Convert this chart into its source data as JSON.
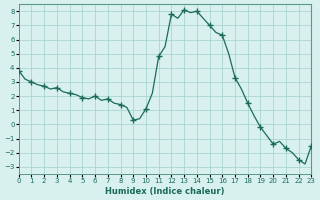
{
  "title": "",
  "xlabel": "Humidex (Indice chaleur)",
  "ylabel": "",
  "background_color": "#d8f0ee",
  "grid_color": "#a0d0cc",
  "line_color": "#1a6b5a",
  "marker_color": "#1a6b5a",
  "xlim": [
    0,
    23
  ],
  "ylim": [
    -3.5,
    8.5
  ],
  "yticks": [
    -3,
    -2,
    -1,
    0,
    1,
    2,
    3,
    4,
    5,
    6,
    7,
    8
  ],
  "xticks": [
    0,
    1,
    2,
    3,
    4,
    5,
    6,
    7,
    8,
    9,
    10,
    11,
    12,
    13,
    14,
    15,
    16,
    17,
    18,
    19,
    20,
    21,
    22,
    23
  ],
  "x": [
    0,
    0.5,
    1,
    1.5,
    2,
    2.5,
    3,
    3.5,
    4,
    4.5,
    5,
    5.5,
    6,
    6.5,
    7,
    7.5,
    8,
    8.5,
    9,
    9.5,
    10,
    10.5,
    11,
    11.5,
    12,
    12.5,
    13,
    13.5,
    14,
    14.5,
    15,
    15.5,
    16,
    16.5,
    17,
    17.5,
    18,
    18.5,
    19,
    19.5,
    20,
    20.5,
    21,
    21.5,
    22,
    22.5,
    23
  ],
  "y": [
    3.8,
    3.2,
    3.0,
    2.8,
    2.7,
    2.5,
    2.6,
    2.3,
    2.2,
    2.1,
    1.9,
    1.8,
    2.0,
    1.7,
    1.8,
    1.5,
    1.4,
    1.2,
    0.3,
    0.4,
    1.1,
    2.2,
    4.8,
    5.5,
    7.8,
    7.5,
    8.1,
    7.9,
    8.0,
    7.5,
    7.0,
    6.5,
    6.3,
    5.0,
    3.3,
    2.5,
    1.5,
    0.6,
    -0.2,
    -0.8,
    -1.4,
    -1.2,
    -1.7,
    -2.0,
    -2.5,
    -2.8,
    -1.5
  ],
  "marker_x": [
    0,
    1,
    2,
    3,
    4,
    5,
    6,
    7,
    8,
    9,
    10,
    11,
    12,
    13,
    14,
    15,
    16,
    17,
    18,
    19,
    20,
    21,
    22,
    23
  ],
  "marker_y": [
    3.8,
    3.0,
    2.7,
    2.6,
    2.2,
    1.9,
    2.0,
    1.8,
    1.4,
    0.3,
    1.1,
    4.8,
    7.8,
    8.1,
    8.0,
    7.0,
    6.3,
    3.3,
    1.5,
    -0.2,
    -1.4,
    -1.7,
    -2.5,
    -1.5
  ]
}
